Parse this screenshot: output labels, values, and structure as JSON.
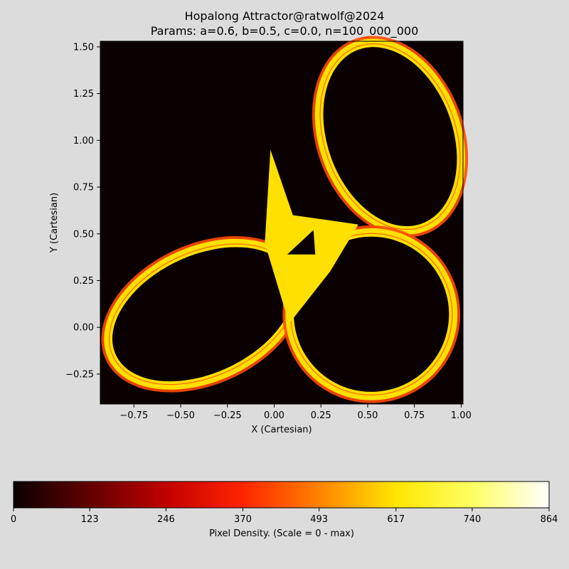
{
  "title": "Hopalong Attractor@ratwolf@2024",
  "subtitle": "Params: a=0.6, b=0.5, c=0.0, n=100_000_000",
  "colors": {
    "figure_bg": "#dcdcdc",
    "plot_bg": "#0b0000",
    "attractor_fill": "#ffe000",
    "attractor_edge": "#ff4a00",
    "hole_fill": "#0b0000"
  },
  "chart_data": [
    {
      "type": "heatmap",
      "title": "Hopalong Attractor@ratwolf@2024",
      "subtitle": "Params: a=0.6, b=0.5, c=0.0, n=100_000_000",
      "xlabel": "X (Cartesian)",
      "ylabel": "Y (Cartesian)",
      "xlim": [
        -0.93,
        1.01
      ],
      "ylim": [
        -0.41,
        1.53
      ],
      "xticks": [
        -0.75,
        -0.5,
        -0.25,
        0.0,
        0.25,
        0.5,
        0.75,
        1.0
      ],
      "xtick_labels": [
        "−0.75",
        "−0.50",
        "−0.25",
        "0.00",
        "0.25",
        "0.50",
        "0.75",
        "1.00"
      ],
      "yticks": [
        -0.25,
        0.0,
        0.25,
        0.5,
        0.75,
        1.0,
        1.25,
        1.5
      ],
      "ytick_labels": [
        "−0.25",
        "0.00",
        "0.25",
        "0.50",
        "0.75",
        "1.00",
        "1.25",
        "1.50"
      ],
      "grid": false,
      "lobes": [
        {
          "name": "upper-right lobe",
          "center": [
            0.62,
            1.02
          ],
          "radius_x": 0.34,
          "radius_y": 0.5,
          "rotation_deg": 20
        },
        {
          "name": "lower-left lobe",
          "center": [
            -0.38,
            0.07
          ],
          "radius_x": 0.52,
          "radius_y": 0.32,
          "rotation_deg": 25
        },
        {
          "name": "lower-right lobe",
          "center": [
            0.52,
            0.07
          ],
          "radius_x": 0.42,
          "radius_y": 0.42,
          "rotation_deg": -8
        }
      ]
    },
    {
      "type": "colorbar",
      "label": "Pixel Density. (Scale = 0 - max)",
      "range": [
        0,
        864
      ],
      "ticks": [
        0,
        123,
        246,
        370,
        493,
        617,
        740,
        864
      ],
      "tick_labels": [
        "0",
        "123",
        "246",
        "370",
        "493",
        "617",
        "740",
        "864"
      ],
      "colormap": "hot",
      "color_stops": [
        "#0b0000",
        "#620000",
        "#c30000",
        "#ff2400",
        "#ff8300",
        "#ffe600",
        "#ffff64",
        "#ffffff"
      ]
    }
  ]
}
